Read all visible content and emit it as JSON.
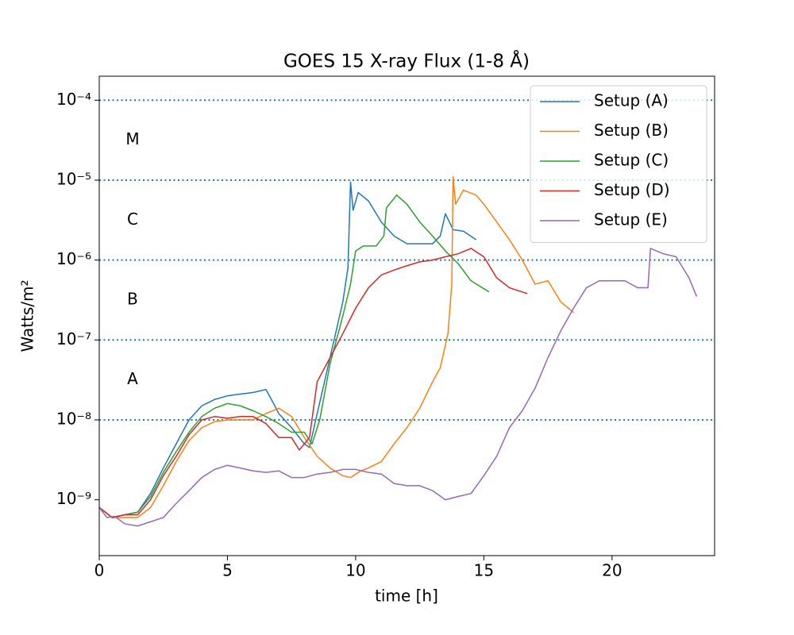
{
  "chart_data": {
    "type": "line",
    "title": "GOES 15 X-ray Flux (1-8 Å)",
    "x_label": "time [h]",
    "y_label": "Watts/m²",
    "xlim": [
      0,
      24
    ],
    "ylim": [
      2e-10,
      0.0002
    ],
    "yscale": "log",
    "xticks": [
      0,
      5,
      10,
      15,
      20
    ],
    "yticks": [
      {
        "value": 1e-09,
        "label": "10⁻⁹"
      },
      {
        "value": 1e-08,
        "label": "10⁻⁸"
      },
      {
        "value": 1e-07,
        "label": "10⁻⁷"
      },
      {
        "value": 1e-06,
        "label": "10⁻⁶"
      },
      {
        "value": 1e-05,
        "label": "10⁻⁵"
      },
      {
        "value": 0.0001,
        "label": "10⁻⁴"
      }
    ],
    "legend": "upper right",
    "flare_classes": {
      "labels": [
        "A",
        "B",
        "C",
        "M"
      ],
      "thresholds": [
        1e-08,
        1e-07,
        1e-06,
        1e-05,
        0.0001
      ],
      "color": "#1f77b4"
    },
    "series": [
      {
        "name": "Setup (A)",
        "color": "#1f77b4",
        "x": [
          0,
          0.5,
          1,
          1.5,
          2,
          2.5,
          3,
          3.5,
          4,
          4.5,
          5,
          5.5,
          6,
          6.5,
          6.8,
          7,
          7.5,
          8,
          8.2,
          8.5,
          9,
          9.5,
          9.7,
          9.8,
          9.9,
          10.1,
          10.5,
          11,
          11.5,
          12,
          12.5,
          13,
          13.3,
          13.5,
          13.8,
          14.2,
          14.7
        ],
        "values": [
          8e-10,
          6e-10,
          6.5e-10,
          7e-10,
          1.2e-09,
          2.5e-09,
          5e-09,
          1e-08,
          1.5e-08,
          1.8e-08,
          2e-08,
          2.1e-08,
          2.2e-08,
          2.4e-08,
          1.6e-08,
          1.2e-08,
          8e-09,
          5e-09,
          4.5e-09,
          1.2e-08,
          6e-08,
          3e-07,
          8e-07,
          9.5e-06,
          4.2e-06,
          7e-06,
          5.5e-06,
          3e-06,
          2e-06,
          1.6e-06,
          1.6e-06,
          1.6e-06,
          2e-06,
          3.8e-06,
          2.4e-06,
          2.3e-06,
          1.8e-06
        ]
      },
      {
        "name": "Setup (B)",
        "color": "#ff7f0e",
        "x": [
          0,
          0.5,
          1,
          1.5,
          2,
          2.5,
          3,
          3.5,
          4,
          4.5,
          5,
          5.5,
          6,
          6.5,
          7,
          7.5,
          8,
          8.5,
          9,
          9.5,
          9.8,
          10.2,
          10.5,
          11,
          11.5,
          12,
          12.5,
          13,
          13.3,
          13.6,
          13.75,
          13.8,
          13.9,
          14.2,
          14.7,
          15,
          15.5,
          16,
          16.5,
          17,
          17.5,
          18,
          18.5
        ],
        "values": [
          8e-10,
          6e-10,
          6e-10,
          6e-10,
          8e-10,
          1.5e-09,
          3e-09,
          5.5e-09,
          8e-09,
          9.5e-09,
          1e-08,
          1e-08,
          1e-08,
          1.2e-08,
          1.4e-08,
          1.1e-08,
          6e-09,
          3.5e-09,
          2.5e-09,
          2e-09,
          1.9e-09,
          2.3e-09,
          2.5e-09,
          3e-09,
          5e-09,
          8e-09,
          1.4e-08,
          3e-08,
          4.5e-08,
          1.2e-07,
          5e-07,
          1.1e-05,
          5e-06,
          7.5e-06,
          6.5e-06,
          5e-06,
          3e-06,
          1.8e-06,
          1e-06,
          5e-07,
          5.5e-07,
          3e-07,
          2.2e-07
        ]
      },
      {
        "name": "Setup (C)",
        "color": "#2ca02c",
        "x": [
          0,
          0.5,
          1,
          1.5,
          2,
          2.5,
          3,
          3.5,
          4,
          4.5,
          5,
          5.5,
          6,
          6.5,
          7,
          7.5,
          8,
          8.3,
          8.6,
          9,
          9.5,
          9.8,
          10,
          10.3,
          10.8,
          11.1,
          11.2,
          11.6,
          12,
          12.5,
          13,
          13.5,
          14,
          14.5,
          15.2
        ],
        "values": [
          8e-10,
          6e-10,
          6.5e-10,
          7e-10,
          1.1e-09,
          2.2e-09,
          4e-09,
          7e-09,
          1.1e-08,
          1.4e-08,
          1.6e-08,
          1.5e-08,
          1.3e-08,
          1.1e-08,
          9e-09,
          7e-09,
          7e-09,
          5e-09,
          1e-08,
          5e-08,
          2e-07,
          5e-07,
          1.3e-06,
          1.5e-06,
          1.5e-06,
          2e-06,
          4.5e-06,
          6.5e-06,
          5e-06,
          3e-06,
          2e-06,
          1.3e-06,
          9e-07,
          5.5e-07,
          4e-07
        ]
      },
      {
        "name": "Setup (D)",
        "color": "#d62728",
        "x": [
          0,
          0.5,
          1,
          1.5,
          2,
          2.5,
          3,
          3.5,
          4,
          4.5,
          5,
          5.5,
          6,
          6.5,
          7,
          7.5,
          7.8,
          8.2,
          8.5,
          9,
          9.5,
          10,
          10.5,
          11,
          11.5,
          12,
          12.5,
          13,
          13.5,
          14,
          14.5,
          15,
          15.5,
          16,
          16.7
        ],
        "values": [
          8e-10,
          6e-10,
          6.5e-10,
          6.5e-10,
          1e-09,
          2e-09,
          3.5e-09,
          6.5e-09,
          1e-08,
          1.1e-08,
          1.05e-08,
          1.1e-08,
          1.1e-08,
          9e-09,
          6e-09,
          6e-09,
          4.2e-09,
          6e-09,
          3e-08,
          6e-08,
          1.2e-07,
          2.5e-07,
          4.5e-07,
          6.5e-07,
          7.5e-07,
          8.5e-07,
          9.5e-07,
          1e-06,
          1.1e-06,
          1.2e-06,
          1.4e-06,
          1.1e-06,
          6e-07,
          4.5e-07,
          3.8e-07
        ]
      },
      {
        "name": "Setup (E)",
        "color": "#9467bd",
        "x": [
          0,
          0.3,
          0.6,
          1,
          1.5,
          2,
          2.5,
          3,
          3.5,
          4,
          4.5,
          5,
          5.5,
          6,
          6.5,
          7,
          7.5,
          8,
          8.5,
          9,
          9.5,
          10,
          10.5,
          11,
          11.5,
          12,
          12.5,
          13,
          13.5,
          14,
          14.5,
          15,
          15.5,
          16,
          16.5,
          17,
          17.5,
          18,
          18.5,
          19,
          19.5,
          20,
          20.5,
          21,
          21.4,
          21.5,
          22,
          22.5,
          23,
          23.3
        ],
        "values": [
          8e-10,
          6e-10,
          6.2e-10,
          5e-10,
          4.7e-10,
          5.3e-10,
          6e-10,
          9e-10,
          1.3e-09,
          1.9e-09,
          2.4e-09,
          2.7e-09,
          2.5e-09,
          2.3e-09,
          2.2e-09,
          2.3e-09,
          1.9e-09,
          1.9e-09,
          2.1e-09,
          2.2e-09,
          2.4e-09,
          2.4e-09,
          2.2e-09,
          2.1e-09,
          1.6e-09,
          1.5e-09,
          1.5e-09,
          1.3e-09,
          1e-09,
          1.1e-09,
          1.2e-09,
          2e-09,
          3.5e-09,
          8e-09,
          1.3e-08,
          2.5e-08,
          6e-08,
          1.3e-07,
          2.5e-07,
          4.5e-07,
          5.5e-07,
          5.5e-07,
          5.5e-07,
          4.5e-07,
          4.5e-07,
          1.4e-06,
          1.2e-06,
          1.1e-06,
          6e-07,
          3.5e-07
        ]
      }
    ]
  }
}
